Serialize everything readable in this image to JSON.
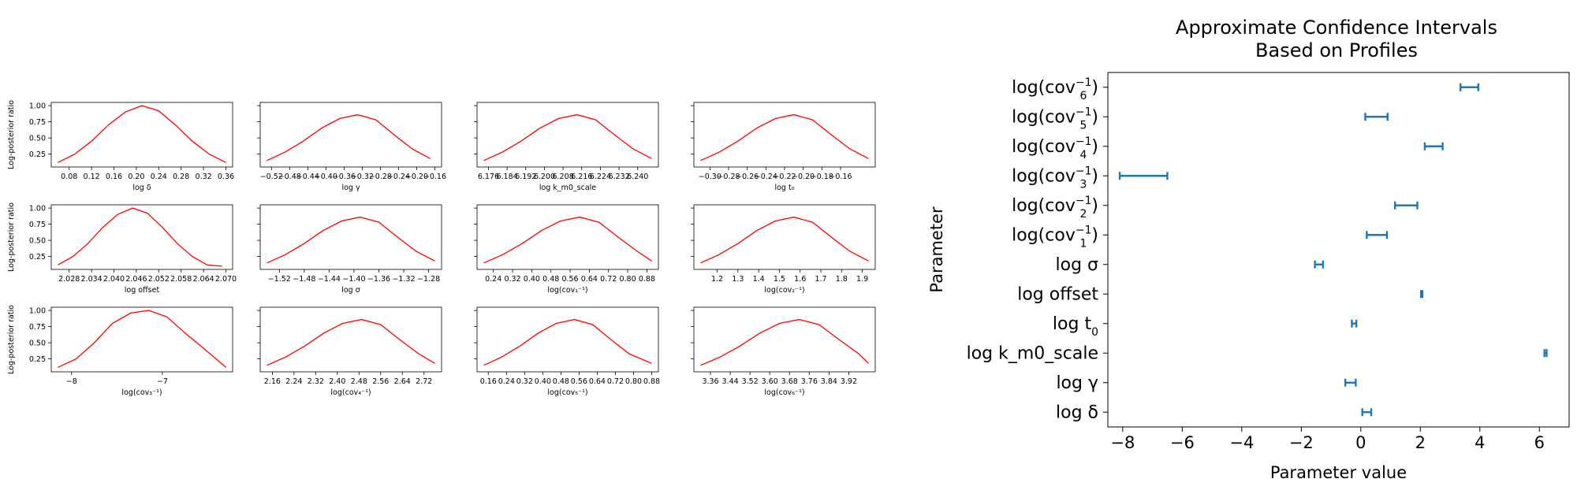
{
  "colors": {
    "profile_line": "#ff0000",
    "interval": "#1f77b4",
    "axis": "#000000"
  },
  "profiles": {
    "ylabel": "Log-posterior ratio",
    "y_ticks": [
      "0.25",
      "0.50",
      "0.75",
      "1.00"
    ],
    "panels": [
      {
        "xlabel": "log δ",
        "x_ticks": [
          "0.08",
          "0.12",
          "0.16",
          "0.20",
          "0.24",
          "0.28",
          "0.32",
          "0.36"
        ]
      },
      {
        "xlabel": "log γ",
        "x_ticks": [
          "−0.52",
          "−0.48",
          "−0.44",
          "−0.40",
          "−0.36",
          "−0.32",
          "−0.28",
          "−0.24",
          "−0.20",
          "−0.16"
        ]
      },
      {
        "xlabel": "log  k_m0_scale",
        "x_ticks": [
          "6.176",
          "6.184",
          "6.192",
          "6.200",
          "6.208",
          "6.216",
          "6.224",
          "6.232",
          "6.240"
        ]
      },
      {
        "xlabel": "log t₀",
        "x_ticks": [
          "−0.30",
          "−0.28",
          "−0.26",
          "−0.24",
          "−0.22",
          "−0.20",
          "−0.18",
          "−0.16"
        ]
      },
      {
        "xlabel": "log  offset",
        "x_ticks": [
          "2.028",
          "2.034",
          "2.040",
          "2.046",
          "2.052",
          "2.058",
          "2.064",
          "2.070"
        ]
      },
      {
        "xlabel": "log σ",
        "x_ticks": [
          "−1.52",
          "−1.48",
          "−1.44",
          "−1.40",
          "−1.36",
          "−1.32",
          "−1.28"
        ]
      },
      {
        "xlabel": "log(cov₁⁻¹)",
        "x_ticks": [
          "0.24",
          "0.32",
          "0.40",
          "0.48",
          "0.56",
          "0.64",
          "0.72",
          "0.80",
          "0.88"
        ]
      },
      {
        "xlabel": "log(cov₂⁻¹)",
        "x_ticks": [
          "1.2",
          "1.3",
          "1.4",
          "1.5",
          "1.6",
          "1.7",
          "1.8",
          "1.9"
        ]
      },
      {
        "xlabel": "log(cov₃⁻¹)",
        "x_ticks": [
          "−8",
          "−7"
        ]
      },
      {
        "xlabel": "log(cov₄⁻¹)",
        "x_ticks": [
          "2.16",
          "2.24",
          "2.32",
          "2.40",
          "2.48",
          "2.56",
          "2.64",
          "2.72"
        ]
      },
      {
        "xlabel": "log(cov₅⁻¹)",
        "x_ticks": [
          "0.16",
          "0.24",
          "0.32",
          "0.40",
          "0.48",
          "0.56",
          "0.64",
          "0.72",
          "0.80",
          "0.88"
        ]
      },
      {
        "xlabel": "log(cov₆⁻¹)",
        "x_ticks": [
          "3.36",
          "3.44",
          "3.52",
          "3.60",
          "3.68",
          "3.76",
          "3.84",
          "3.92"
        ]
      }
    ]
  },
  "chart_data": [
    {
      "type": "line",
      "panel_grid": "3x4",
      "ylabel": "Log-posterior ratio",
      "series": [
        {
          "x": [
            0.06,
            0.09,
            0.12,
            0.15,
            0.18,
            0.21,
            0.24,
            0.27,
            0.3,
            0.33,
            0.36
          ],
          "y": [
            0.12,
            0.25,
            0.45,
            0.7,
            0.9,
            1.0,
            0.92,
            0.7,
            0.45,
            0.25,
            0.12
          ]
        },
        {
          "x": [
            -0.53,
            -0.49,
            -0.45,
            -0.41,
            -0.37,
            -0.33,
            -0.29,
            -0.25,
            -0.21,
            -0.17
          ],
          "y": [
            0.15,
            0.28,
            0.45,
            0.65,
            0.8,
            0.86,
            0.78,
            0.55,
            0.33,
            0.18
          ]
        },
        {
          "x": [
            6.174,
            6.182,
            6.19,
            6.198,
            6.206,
            6.214,
            6.222,
            6.23,
            6.238,
            6.246
          ],
          "y": [
            0.15,
            0.28,
            0.45,
            0.65,
            0.8,
            0.86,
            0.78,
            0.55,
            0.33,
            0.18
          ]
        },
        {
          "x": [
            -0.31,
            -0.29,
            -0.27,
            -0.25,
            -0.23,
            -0.21,
            -0.19,
            -0.17,
            -0.15,
            -0.13
          ],
          "y": [
            0.15,
            0.28,
            0.45,
            0.65,
            0.8,
            0.86,
            0.78,
            0.55,
            0.33,
            0.18
          ]
        },
        {
          "x": [
            2.025,
            2.029,
            2.033,
            2.037,
            2.041,
            2.045,
            2.049,
            2.053,
            2.057,
            2.061,
            2.065,
            2.069
          ],
          "y": [
            0.12,
            0.25,
            0.45,
            0.7,
            0.9,
            1.0,
            0.92,
            0.7,
            0.45,
            0.25,
            0.12,
            0.1
          ]
        },
        {
          "x": [
            -1.54,
            -1.51,
            -1.48,
            -1.45,
            -1.42,
            -1.39,
            -1.36,
            -1.33,
            -1.3,
            -1.27
          ],
          "y": [
            0.15,
            0.28,
            0.45,
            0.65,
            0.8,
            0.86,
            0.78,
            0.55,
            0.33,
            0.18
          ]
        },
        {
          "x": [
            0.2,
            0.28,
            0.36,
            0.44,
            0.52,
            0.6,
            0.68,
            0.76,
            0.84,
            0.9
          ],
          "y": [
            0.15,
            0.28,
            0.45,
            0.65,
            0.8,
            0.86,
            0.78,
            0.55,
            0.33,
            0.18
          ]
        },
        {
          "x": [
            1.12,
            1.21,
            1.3,
            1.39,
            1.48,
            1.57,
            1.66,
            1.75,
            1.84,
            1.93
          ],
          "y": [
            0.15,
            0.28,
            0.45,
            0.65,
            0.8,
            0.86,
            0.78,
            0.55,
            0.33,
            0.18
          ]
        },
        {
          "x": [
            -8.15,
            -7.95,
            -7.75,
            -7.55,
            -7.35,
            -7.15,
            -6.95,
            -6.75,
            -6.55,
            -6.3
          ],
          "y": [
            0.12,
            0.25,
            0.5,
            0.8,
            0.96,
            1.0,
            0.9,
            0.65,
            0.42,
            0.12
          ]
        },
        {
          "x": [
            2.14,
            2.21,
            2.28,
            2.35,
            2.42,
            2.49,
            2.56,
            2.63,
            2.7,
            2.76
          ],
          "y": [
            0.15,
            0.28,
            0.45,
            0.65,
            0.8,
            0.86,
            0.78,
            0.55,
            0.33,
            0.18
          ]
        },
        {
          "x": [
            0.14,
            0.22,
            0.3,
            0.38,
            0.46,
            0.54,
            0.62,
            0.7,
            0.78,
            0.88
          ],
          "y": [
            0.15,
            0.28,
            0.45,
            0.65,
            0.8,
            0.86,
            0.78,
            0.55,
            0.33,
            0.18
          ]
        },
        {
          "x": [
            3.32,
            3.4,
            3.48,
            3.56,
            3.64,
            3.72,
            3.8,
            3.88,
            3.96,
            4.0
          ],
          "y": [
            0.15,
            0.28,
            0.45,
            0.65,
            0.8,
            0.86,
            0.78,
            0.55,
            0.33,
            0.18
          ]
        }
      ]
    },
    {
      "type": "errorbar",
      "title": "Approximate Confidence Intervals\nBased on Profiles",
      "xlabel": "Parameter value",
      "ylabel": "Parameter",
      "xlim": [
        -8.5,
        7.0
      ],
      "x_ticks": [
        "−8",
        "−6",
        "−4",
        "−2",
        "0",
        "2",
        "4",
        "6"
      ],
      "x_tick_values": [
        -8,
        -6,
        -4,
        -2,
        0,
        2,
        4,
        6
      ],
      "categories": [
        {
          "label_base": "log δ",
          "sub": "",
          "sup": "",
          "low": 0.05,
          "high": 0.35
        },
        {
          "label_base": "log γ",
          "sub": "",
          "sup": "",
          "low": -0.52,
          "high": -0.17
        },
        {
          "label_base": "log  k_m0_scale",
          "sub": "",
          "sup": "",
          "low": 6.17,
          "high": 6.245
        },
        {
          "label_base": "log t",
          "sub": "0",
          "sup": "",
          "low": -0.3,
          "high": -0.15
        },
        {
          "label_base": "log  offset",
          "sub": "",
          "sup": "",
          "low": 2.025,
          "high": 2.07
        },
        {
          "label_base": "log σ",
          "sub": "",
          "sup": "",
          "low": -1.54,
          "high": -1.27
        },
        {
          "label_base": "log(cov",
          "sub": "1",
          "sup": "−1",
          "low": 0.2,
          "high": 0.88
        },
        {
          "label_base": "log(cov",
          "sub": "2",
          "sup": "−1",
          "low": 1.15,
          "high": 1.9
        },
        {
          "label_base": "log(cov",
          "sub": "3",
          "sup": "−1",
          "low": -8.1,
          "high": -6.5
        },
        {
          "label_base": "log(cov",
          "sub": "4",
          "sup": "−1",
          "low": 2.15,
          "high": 2.75
        },
        {
          "label_base": "log(cov",
          "sub": "5",
          "sup": "−1",
          "low": 0.15,
          "high": 0.9
        },
        {
          "label_base": "log(cov",
          "sub": "6",
          "sup": "−1",
          "low": 3.35,
          "high": 3.95
        }
      ]
    }
  ]
}
